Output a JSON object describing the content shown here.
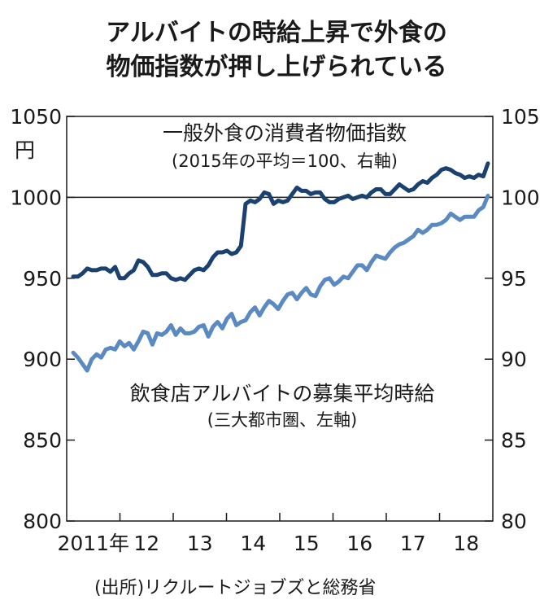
{
  "chart_data": {
    "type": "line",
    "title_lines": [
      "アルバイトの時給上昇で外食の",
      "物価指数が押し上げられている"
    ],
    "left_axis": {
      "unit": "円",
      "ticks": [
        800,
        850,
        900,
        950,
        1000,
        1050
      ],
      "range": [
        800,
        1050
      ]
    },
    "right_axis": {
      "ticks": [
        80,
        85,
        90,
        95,
        100,
        105
      ],
      "range": [
        80,
        105
      ]
    },
    "x_axis": {
      "ticks": [
        "2011年",
        "12",
        "13",
        "14",
        "15",
        "16",
        "17",
        "18"
      ],
      "start_year": 2011,
      "end_year": 2018
    },
    "series": [
      {
        "name": "一般外食の消費者物価指数",
        "note": "(2015年の平均＝100、右軸)",
        "axis": "right",
        "color": "#1a4170",
        "values": [
          95.1,
          95.1,
          95.3,
          95.6,
          95.5,
          95.5,
          95.6,
          95.6,
          95.4,
          95.7,
          95.0,
          95.0,
          95.3,
          95.5,
          96.1,
          96.0,
          95.7,
          95.2,
          95.2,
          95.3,
          95.3,
          95.0,
          94.9,
          95.0,
          94.9,
          95.2,
          95.5,
          95.6,
          95.5,
          95.8,
          96.3,
          96.6,
          96.6,
          96.7,
          96.5,
          96.6,
          97.0,
          99.6,
          99.8,
          99.7,
          99.9,
          100.3,
          100.2,
          99.6,
          99.8,
          99.7,
          99.8,
          100.2,
          100.6,
          100.4,
          100.4,
          100.2,
          100.3,
          100.3,
          99.9,
          99.7,
          99.7,
          99.9,
          100.0,
          100.1,
          99.9,
          100.0,
          100.1,
          100.0,
          100.3,
          100.5,
          100.5,
          100.2,
          100.2,
          100.5,
          100.8,
          100.6,
          100.4,
          100.5,
          100.8,
          101.0,
          100.9,
          101.2,
          101.4,
          101.7,
          101.8,
          101.7,
          101.5,
          101.4,
          101.2,
          101.3,
          101.2,
          101.4,
          101.3,
          102.1
        ]
      },
      {
        "name": "飲食店アルバイトの募集平均時給",
        "note": "(三大都市圏、左軸)",
        "axis": "left",
        "color": "#5b8ac3",
        "values": [
          904,
          901,
          897,
          893,
          900,
          903,
          901,
          906,
          907,
          906,
          911,
          908,
          910,
          906,
          911,
          917,
          916,
          909,
          916,
          915,
          917,
          921,
          915,
          919,
          916,
          916,
          917,
          920,
          921,
          914,
          920,
          923,
          919,
          925,
          928,
          921,
          923,
          924,
          929,
          932,
          927,
          932,
          936,
          934,
          931,
          936,
          940,
          941,
          937,
          941,
          944,
          940,
          939,
          945,
          949,
          950,
          946,
          948,
          951,
          950,
          954,
          958,
          958,
          955,
          960,
          964,
          963,
          962,
          966,
          969,
          971,
          972,
          974,
          976,
          980,
          978,
          980,
          983,
          983,
          984,
          986,
          990,
          988,
          986,
          988,
          988,
          988,
          992,
          994,
          1001
        ]
      }
    ],
    "reference_line": {
      "axis": "left",
      "value": 1000
    },
    "source": "(出所)リクルートジョブズと総務省"
  }
}
